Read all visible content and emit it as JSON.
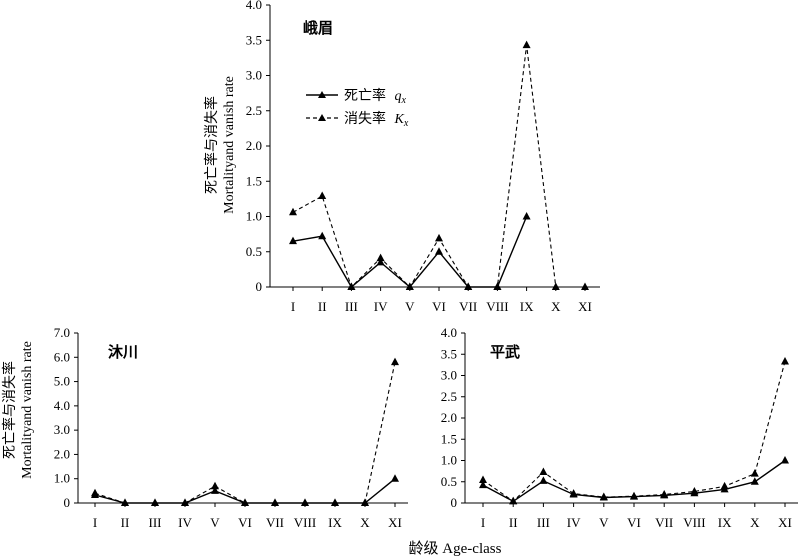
{
  "figure": {
    "x_axis_title": "龄级 Age-class",
    "y_axis_title_cn": "死亡率与消失率",
    "y_axis_title_en": "Mortalityand vanish rate"
  },
  "legend": {
    "mortality": "死亡率",
    "mortality_symbol": "qx",
    "vanish": "消失率",
    "vanish_symbol": "Kx"
  },
  "chart_data": [
    {
      "type": "line",
      "title": "峨眉",
      "categories": [
        "I",
        "II",
        "III",
        "IV",
        "V",
        "VI",
        "VII",
        "VIII",
        "IX",
        "X",
        "XI"
      ],
      "ylim": [
        0,
        4.0
      ],
      "yticks": [
        "0",
        "0.5",
        "1.0",
        "1.5",
        "2.0",
        "2.5",
        "3.0",
        "3.5",
        "4.0"
      ],
      "series": [
        {
          "name": "死亡率 qx",
          "style": "solid",
          "values": [
            0.65,
            0.72,
            0,
            0.35,
            0,
            0.5,
            0,
            0,
            1.0,
            null,
            null
          ]
        },
        {
          "name": "消失率 Kx",
          "style": "dashed",
          "values": [
            1.06,
            1.29,
            0,
            0.41,
            0,
            0.69,
            0,
            0,
            3.43,
            0,
            0
          ]
        }
      ]
    },
    {
      "type": "line",
      "title": "沐川",
      "categories": [
        "I",
        "II",
        "III",
        "IV",
        "V",
        "VI",
        "VII",
        "VIII",
        "IX",
        "X",
        "XI"
      ],
      "ylim": [
        0,
        7.0
      ],
      "yticks": [
        "0",
        "1.0",
        "2.0",
        "3.0",
        "4.0",
        "5.0",
        "6.0",
        "7.0"
      ],
      "series": [
        {
          "name": "死亡率 qx",
          "style": "solid",
          "values": [
            0.33,
            0,
            0,
            0,
            0.5,
            0,
            0,
            0,
            0,
            0,
            1.0
          ]
        },
        {
          "name": "消失率 Kx",
          "style": "dashed",
          "values": [
            0.4,
            0,
            0,
            0,
            0.69,
            0,
            0,
            0,
            0,
            0,
            5.8
          ]
        }
      ]
    },
    {
      "type": "line",
      "title": "平武",
      "categories": [
        "I",
        "II",
        "III",
        "IV",
        "V",
        "VI",
        "VII",
        "VIII",
        "IX",
        "X",
        "XI"
      ],
      "ylim": [
        0,
        4.0
      ],
      "yticks": [
        "0",
        "0.5",
        "1.0",
        "1.5",
        "2.0",
        "2.5",
        "3.0",
        "3.5",
        "4.0"
      ],
      "series": [
        {
          "name": "死亡率 qx",
          "style": "solid",
          "values": [
            0.42,
            0.04,
            0.52,
            0.2,
            0.13,
            0.15,
            0.18,
            0.23,
            0.32,
            0.5,
            1.0
          ]
        },
        {
          "name": "消失率 Kx",
          "style": "dashed",
          "values": [
            0.54,
            0.04,
            0.73,
            0.22,
            0.14,
            0.16,
            0.2,
            0.27,
            0.39,
            0.69,
            3.33
          ]
        }
      ]
    }
  ]
}
